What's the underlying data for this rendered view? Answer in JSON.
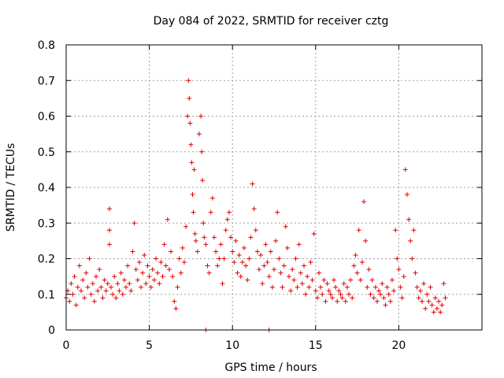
{
  "chart_data": {
    "type": "scatter",
    "title": "Day 084 of 2022, SRMTID for receiver cztg",
    "xlabel": "GPS time / hours",
    "ylabel": "SRMTID / TECUs",
    "xlim": [
      0,
      25
    ],
    "ylim": [
      0,
      0.8
    ],
    "x_ticks": [
      0,
      5,
      10,
      15,
      20
    ],
    "x_tick_labels": [
      "0",
      "5",
      "10",
      "15",
      "20"
    ],
    "y_ticks": [
      0,
      0.1,
      0.2,
      0.3,
      0.4,
      0.5,
      0.6,
      0.7,
      0.8
    ],
    "y_tick_labels": [
      "0",
      "0.1",
      "0.2",
      "0.3",
      "0.4",
      "0.5",
      "0.6",
      "0.7",
      "0.8"
    ],
    "grid": true,
    "marker": "plus",
    "series": [
      {
        "name": "SRMTID",
        "color": "#e00000",
        "x": [
          0.0,
          0.1,
          0.2,
          0.3,
          0.4,
          0.5,
          0.6,
          0.7,
          0.8,
          0.9,
          1.0,
          1.1,
          1.2,
          1.3,
          1.4,
          1.5,
          1.6,
          1.7,
          1.8,
          1.9,
          2.0,
          2.1,
          2.2,
          2.3,
          2.4,
          2.5,
          2.6,
          2.6,
          2.6,
          2.7,
          2.8,
          2.9,
          3.0,
          3.1,
          3.2,
          3.3,
          3.4,
          3.5,
          3.6,
          3.7,
          3.8,
          3.9,
          4.0,
          4.1,
          4.2,
          4.3,
          4.4,
          4.5,
          4.6,
          4.7,
          4.8,
          4.9,
          5.0,
          5.1,
          5.2,
          5.3,
          5.4,
          5.5,
          5.6,
          5.7,
          5.8,
          5.9,
          6.0,
          6.1,
          6.2,
          6.3,
          6.4,
          6.5,
          6.6,
          6.7,
          6.8,
          6.9,
          7.0,
          7.1,
          7.2,
          7.3,
          7.35,
          7.4,
          7.45,
          7.5,
          7.55,
          7.6,
          7.65,
          7.7,
          7.75,
          7.8,
          7.9,
          8.0,
          8.1,
          8.15,
          8.2,
          8.25,
          8.3,
          8.4,
          8.5,
          8.6,
          8.7,
          8.8,
          8.9,
          9.0,
          9.1,
          9.2,
          9.3,
          9.4,
          9.5,
          9.6,
          9.7,
          9.8,
          9.9,
          10.0,
          10.1,
          10.2,
          10.3,
          10.4,
          10.5,
          10.6,
          10.7,
          10.8,
          10.9,
          11.0,
          11.1,
          11.2,
          11.3,
          11.4,
          11.5,
          11.6,
          11.7,
          11.8,
          11.9,
          12.0,
          12.1,
          12.2,
          12.3,
          12.4,
          12.5,
          12.6,
          12.7,
          12.8,
          12.9,
          13.0,
          13.1,
          13.2,
          13.3,
          13.4,
          13.5,
          13.6,
          13.7,
          13.8,
          13.9,
          14.0,
          14.1,
          14.2,
          14.3,
          14.4,
          14.5,
          14.6,
          14.7,
          14.8,
          14.9,
          15.0,
          15.1,
          15.2,
          15.3,
          15.4,
          15.5,
          15.6,
          15.7,
          15.8,
          15.9,
          16.0,
          16.1,
          16.2,
          16.3,
          16.4,
          16.5,
          16.6,
          16.7,
          16.8,
          16.9,
          17.0,
          17.1,
          17.2,
          17.3,
          17.4,
          17.5,
          17.6,
          17.7,
          17.8,
          17.9,
          18.0,
          18.1,
          18.2,
          18.3,
          18.4,
          18.5,
          18.6,
          18.7,
          18.8,
          18.9,
          19.0,
          19.1,
          19.2,
          19.3,
          19.4,
          19.5,
          19.6,
          19.7,
          19.8,
          19.9,
          20.0,
          20.1,
          20.2,
          20.3,
          20.4,
          20.5,
          20.6,
          20.7,
          20.8,
          20.9,
          21.0,
          21.1,
          21.2,
          21.3,
          21.4,
          21.5,
          21.6,
          21.7,
          21.8,
          21.9,
          22.0,
          22.1,
          22.2,
          22.3,
          22.4,
          22.5,
          22.6,
          22.7,
          22.8,
          8.4,
          12.2
        ],
        "y": [
          0.09,
          0.11,
          0.08,
          0.13,
          0.1,
          0.15,
          0.07,
          0.12,
          0.18,
          0.11,
          0.14,
          0.09,
          0.16,
          0.12,
          0.2,
          0.1,
          0.13,
          0.08,
          0.15,
          0.11,
          0.17,
          0.12,
          0.09,
          0.14,
          0.11,
          0.13,
          0.34,
          0.28,
          0.24,
          0.12,
          0.1,
          0.15,
          0.09,
          0.13,
          0.11,
          0.16,
          0.1,
          0.14,
          0.12,
          0.18,
          0.13,
          0.11,
          0.22,
          0.3,
          0.17,
          0.14,
          0.19,
          0.12,
          0.16,
          0.21,
          0.13,
          0.18,
          0.15,
          0.12,
          0.17,
          0.14,
          0.2,
          0.16,
          0.13,
          0.19,
          0.15,
          0.24,
          0.18,
          0.31,
          0.17,
          0.22,
          0.15,
          0.08,
          0.06,
          0.12,
          0.2,
          0.16,
          0.23,
          0.19,
          0.29,
          0.6,
          0.7,
          0.65,
          0.58,
          0.52,
          0.47,
          0.38,
          0.33,
          0.45,
          0.27,
          0.25,
          0.22,
          0.55,
          0.6,
          0.5,
          0.42,
          0.3,
          0.26,
          0.24,
          0.18,
          0.16,
          0.33,
          0.37,
          0.26,
          0.22,
          0.18,
          0.2,
          0.24,
          0.13,
          0.2,
          0.28,
          0.31,
          0.33,
          0.26,
          0.22,
          0.19,
          0.25,
          0.16,
          0.21,
          0.15,
          0.19,
          0.23,
          0.18,
          0.14,
          0.2,
          0.26,
          0.41,
          0.34,
          0.28,
          0.22,
          0.17,
          0.21,
          0.13,
          0.18,
          0.24,
          0.19,
          0.15,
          0.22,
          0.12,
          0.17,
          0.25,
          0.33,
          0.2,
          0.16,
          0.12,
          0.18,
          0.29,
          0.23,
          0.15,
          0.11,
          0.17,
          0.14,
          0.2,
          0.12,
          0.24,
          0.16,
          0.13,
          0.18,
          0.1,
          0.15,
          0.12,
          0.19,
          0.14,
          0.27,
          0.11,
          0.09,
          0.16,
          0.12,
          0.1,
          0.14,
          0.08,
          0.13,
          0.11,
          0.1,
          0.09,
          0.14,
          0.12,
          0.08,
          0.11,
          0.1,
          0.09,
          0.13,
          0.08,
          0.12,
          0.1,
          0.14,
          0.09,
          0.18,
          0.21,
          0.16,
          0.28,
          0.14,
          0.19,
          0.36,
          0.25,
          0.12,
          0.17,
          0.1,
          0.14,
          0.09,
          0.12,
          0.08,
          0.11,
          0.1,
          0.13,
          0.09,
          0.07,
          0.12,
          0.1,
          0.08,
          0.14,
          0.11,
          0.28,
          0.2,
          0.17,
          0.12,
          0.09,
          0.15,
          0.45,
          0.38,
          0.31,
          0.25,
          0.2,
          0.28,
          0.16,
          0.12,
          0.09,
          0.11,
          0.08,
          0.13,
          0.06,
          0.1,
          0.08,
          0.12,
          0.07,
          0.05,
          0.09,
          0.06,
          0.08,
          0.05,
          0.07,
          0.13,
          0.09,
          0.0,
          0.0
        ]
      }
    ]
  }
}
